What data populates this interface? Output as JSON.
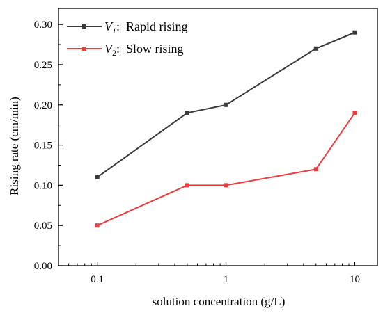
{
  "chart_data": {
    "type": "line",
    "x_scale": "log",
    "xlim": [
      0.05,
      15
    ],
    "ylim": [
      0,
      0.32
    ],
    "xticks": [
      0.1,
      1,
      10
    ],
    "xtick_labels": [
      "0.1",
      "1",
      "10"
    ],
    "yticks": [
      0,
      0.05,
      0.1,
      0.15,
      0.2,
      0.25,
      0.3
    ],
    "ytick_labels": [
      "0.00",
      "0.05",
      "0.10",
      "0.15",
      "0.20",
      "0.25",
      "0.30"
    ],
    "xlabel": "solution concentration (g/L)",
    "ylabel": "Rising rate (cm/min)",
    "grid": false,
    "legend_position": "top-left",
    "x": [
      0.1,
      0.5,
      1,
      5,
      10
    ],
    "series": [
      {
        "name": "V1: Rapid rising",
        "legend_symbol": "V",
        "legend_subscript": "1",
        "legend_text": "Rapid rising",
        "color": "#3a3a3a",
        "values": [
          0.11,
          0.19,
          0.2,
          0.27,
          0.29
        ]
      },
      {
        "name": "V2: Slow rising",
        "legend_symbol": "V",
        "legend_subscript": "2",
        "legend_text": "Slow rising",
        "color": "#f03c3c",
        "values": [
          0.05,
          0.1,
          0.1,
          0.12,
          0.19
        ]
      }
    ]
  }
}
